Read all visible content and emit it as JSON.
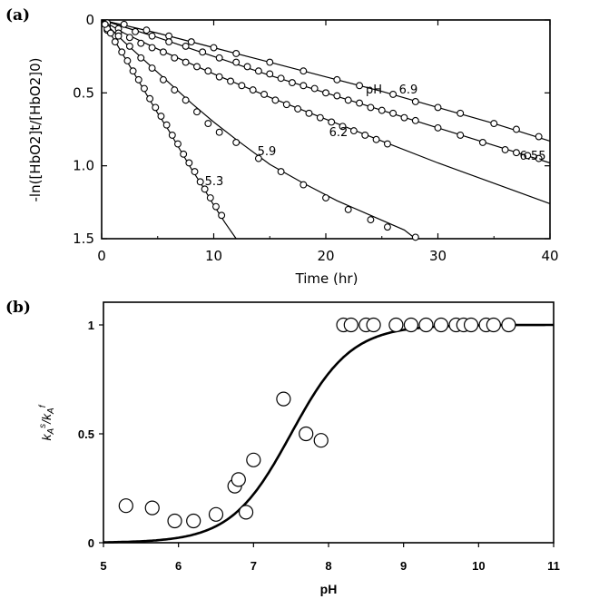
{
  "chart_data": [
    {
      "panel_label": "(a)",
      "type": "scatter",
      "xlabel": "Time (hr)",
      "ylabel": "-ln([HbO2]t/[HbO2]0)",
      "xlim": [
        0,
        40
      ],
      "ylim": [
        0,
        1.5
      ],
      "y_inverted": true,
      "xticks": [
        "0",
        "10",
        "20",
        "30",
        "40"
      ],
      "yticks": [
        "0",
        "0.5",
        "1.0",
        "1.5"
      ],
      "grid": false,
      "curve_prefix": "pH",
      "series": [
        {
          "label": "6.9",
          "fit": [
            [
              0,
              0
            ],
            [
              5,
              0.09
            ],
            [
              10,
              0.19
            ],
            [
              15,
              0.29
            ],
            [
              20,
              0.39
            ],
            [
              25,
              0.49
            ],
            [
              30,
              0.6
            ],
            [
              35,
              0.71
            ],
            [
              40,
              0.83
            ]
          ],
          "points": [
            [
              0.5,
              0.02
            ],
            [
              2,
              0.03
            ],
            [
              4,
              0.07
            ],
            [
              6,
              0.11
            ],
            [
              8,
              0.15
            ],
            [
              10,
              0.19
            ],
            [
              12,
              0.23
            ],
            [
              15,
              0.29
            ],
            [
              18,
              0.35
            ],
            [
              21,
              0.41
            ],
            [
              23,
              0.45
            ],
            [
              26,
              0.51
            ],
            [
              28,
              0.56
            ],
            [
              30,
              0.6
            ],
            [
              32,
              0.64
            ],
            [
              35,
              0.71
            ],
            [
              37,
              0.75
            ],
            [
              39,
              0.8
            ]
          ]
        },
        {
          "label": "6.55",
          "fit": [
            [
              0,
              0
            ],
            [
              5,
              0.12
            ],
            [
              10,
              0.25
            ],
            [
              15,
              0.38
            ],
            [
              20,
              0.5
            ],
            [
              25,
              0.62
            ],
            [
              30,
              0.74
            ],
            [
              35,
              0.86
            ],
            [
              40,
              0.98
            ]
          ],
          "points": [
            [
              0.5,
              0.05
            ],
            [
              1.5,
              0.06
            ],
            [
              3,
              0.08
            ],
            [
              4.5,
              0.11
            ],
            [
              6,
              0.15
            ],
            [
              7.5,
              0.18
            ],
            [
              9,
              0.22
            ],
            [
              10.5,
              0.26
            ],
            [
              12,
              0.29
            ],
            [
              13,
              0.32
            ],
            [
              14,
              0.35
            ],
            [
              15,
              0.37
            ],
            [
              16,
              0.4
            ],
            [
              17,
              0.43
            ],
            [
              18,
              0.45
            ],
            [
              19,
              0.47
            ],
            [
              20,
              0.5
            ],
            [
              21,
              0.52
            ],
            [
              22,
              0.55
            ],
            [
              23,
              0.57
            ],
            [
              24,
              0.6
            ],
            [
              25,
              0.62
            ],
            [
              26,
              0.64
            ],
            [
              27,
              0.67
            ],
            [
              28,
              0.69
            ],
            [
              30,
              0.74
            ],
            [
              32,
              0.79
            ],
            [
              34,
              0.84
            ],
            [
              36,
              0.89
            ],
            [
              37,
              0.91
            ],
            [
              38,
              0.93
            ],
            [
              39,
              0.95
            ]
          ]
        },
        {
          "label": "6.2",
          "fit": [
            [
              0,
              0
            ],
            [
              2,
              0.09
            ],
            [
              5,
              0.2
            ],
            [
              10,
              0.37
            ],
            [
              15,
              0.53
            ],
            [
              20,
              0.68
            ],
            [
              25,
              0.83
            ],
            [
              30,
              0.98
            ],
            [
              35,
              1.12
            ],
            [
              40,
              1.26
            ]
          ],
          "points": [
            [
              0.5,
              0.07
            ],
            [
              1.5,
              0.09
            ],
            [
              2.5,
              0.12
            ],
            [
              3.5,
              0.16
            ],
            [
              4.5,
              0.19
            ],
            [
              5.5,
              0.22
            ],
            [
              6.5,
              0.26
            ],
            [
              7.5,
              0.29
            ],
            [
              8.5,
              0.32
            ],
            [
              9.5,
              0.35
            ],
            [
              10.5,
              0.39
            ],
            [
              11.5,
              0.42
            ],
            [
              12.5,
              0.45
            ],
            [
              13.5,
              0.48
            ],
            [
              14.5,
              0.51
            ],
            [
              15.5,
              0.55
            ],
            [
              16.5,
              0.58
            ],
            [
              17.5,
              0.61
            ],
            [
              18.5,
              0.64
            ],
            [
              19.5,
              0.67
            ],
            [
              20.5,
              0.7
            ],
            [
              21.5,
              0.73
            ],
            [
              22.5,
              0.76
            ],
            [
              23.5,
              0.79
            ],
            [
              24.5,
              0.82
            ],
            [
              25.5,
              0.85
            ]
          ]
        },
        {
          "label": "5.9",
          "fit": [
            [
              0,
              0
            ],
            [
              2,
              0.15
            ],
            [
              4,
              0.29
            ],
            [
              6,
              0.43
            ],
            [
              8,
              0.57
            ],
            [
              10,
              0.7
            ],
            [
              12,
              0.82
            ],
            [
              15,
              0.99
            ],
            [
              18,
              1.12
            ],
            [
              21,
              1.24
            ],
            [
              24,
              1.34
            ],
            [
              27,
              1.44
            ],
            [
              28,
              1.5
            ]
          ],
          "points": [
            [
              0.5,
              0.06
            ],
            [
              1.5,
              0.11
            ],
            [
              2.5,
              0.18
            ],
            [
              3.5,
              0.26
            ],
            [
              4.5,
              0.33
            ],
            [
              5.5,
              0.41
            ],
            [
              6.5,
              0.48
            ],
            [
              7.5,
              0.55
            ],
            [
              8.5,
              0.63
            ],
            [
              9.5,
              0.71
            ],
            [
              10.5,
              0.77
            ],
            [
              12,
              0.84
            ],
            [
              14,
              0.95
            ],
            [
              16,
              1.04
            ],
            [
              18,
              1.13
            ],
            [
              20,
              1.22
            ],
            [
              22,
              1.3
            ],
            [
              24,
              1.37
            ],
            [
              25.5,
              1.42
            ],
            [
              28,
              1.49
            ]
          ]
        },
        {
          "label": "5.3",
          "fit": [
            [
              0,
              0
            ],
            [
              1,
              0.12
            ],
            [
              2,
              0.25
            ],
            [
              3,
              0.38
            ],
            [
              4,
              0.51
            ],
            [
              5,
              0.64
            ],
            [
              6,
              0.76
            ],
            [
              7,
              0.89
            ],
            [
              8,
              1.02
            ],
            [
              9,
              1.14
            ],
            [
              10,
              1.27
            ],
            [
              11,
              1.39
            ],
            [
              12,
              1.52
            ]
          ],
          "points": [
            [
              0.3,
              0.03
            ],
            [
              0.8,
              0.09
            ],
            [
              1.2,
              0.15
            ],
            [
              1.8,
              0.22
            ],
            [
              2.3,
              0.28
            ],
            [
              2.8,
              0.35
            ],
            [
              3.3,
              0.41
            ],
            [
              3.8,
              0.47
            ],
            [
              4.3,
              0.54
            ],
            [
              4.8,
              0.6
            ],
            [
              5.3,
              0.66
            ],
            [
              5.8,
              0.72
            ],
            [
              6.3,
              0.79
            ],
            [
              6.8,
              0.85
            ],
            [
              7.3,
              0.92
            ],
            [
              7.8,
              0.98
            ],
            [
              8.3,
              1.04
            ],
            [
              8.8,
              1.11
            ],
            [
              9.2,
              1.16
            ],
            [
              9.7,
              1.22
            ],
            [
              10.2,
              1.28
            ],
            [
              10.7,
              1.34
            ]
          ]
        }
      ]
    },
    {
      "panel_label": "(b)",
      "type": "scatter",
      "xlabel": "pH",
      "ylabel_main": "k",
      "ylabel_sub1": "A",
      "ylabel_sup1": "s",
      "ylabel_div": "/k",
      "ylabel_sub2": "A",
      "ylabel_sup2": "f",
      "xlim": [
        5,
        11
      ],
      "ylim": [
        0,
        1
      ],
      "xticks": [
        "5",
        "6",
        "7",
        "8",
        "9",
        "10",
        "11"
      ],
      "yticks": [
        "0",
        "0.5",
        "1"
      ],
      "grid": false,
      "fit_curve": {
        "type": "sigmoid",
        "midpoint_pH": 7.5,
        "slope": 2.5
      },
      "points": [
        [
          5.3,
          0.17
        ],
        [
          5.65,
          0.16
        ],
        [
          5.95,
          0.1
        ],
        [
          6.2,
          0.1
        ],
        [
          6.5,
          0.13
        ],
        [
          6.75,
          0.26
        ],
        [
          6.8,
          0.29
        ],
        [
          6.9,
          0.14
        ],
        [
          7.0,
          0.38
        ],
        [
          7.4,
          0.66
        ],
        [
          7.7,
          0.5
        ],
        [
          7.9,
          0.47
        ],
        [
          8.2,
          1
        ],
        [
          8.3,
          1
        ],
        [
          8.5,
          1
        ],
        [
          8.6,
          1
        ],
        [
          8.9,
          1
        ],
        [
          9.1,
          1
        ],
        [
          9.3,
          1
        ],
        [
          9.5,
          1
        ],
        [
          9.7,
          1
        ],
        [
          9.8,
          1
        ],
        [
          9.9,
          1
        ],
        [
          10.1,
          1
        ],
        [
          10.2,
          1
        ],
        [
          10.4,
          1
        ]
      ]
    }
  ]
}
